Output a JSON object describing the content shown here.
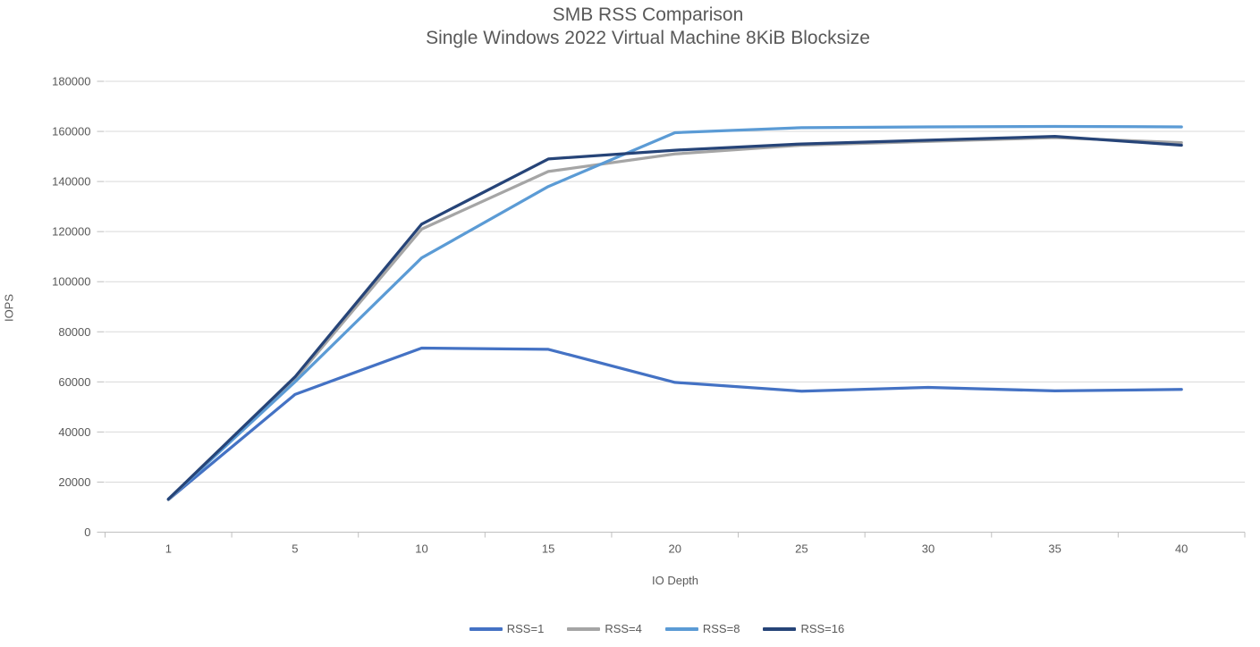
{
  "title": {
    "line1": "SMB RSS Comparison",
    "line2": "Single Windows 2022 Virtual Machine 8KiB Blocksize"
  },
  "chart_data": {
    "type": "line",
    "title": "SMB RSS Comparison",
    "subtitle": "Single Windows 2022 Virtual Machine 8KiB Blocksize",
    "xlabel": "IO Depth",
    "ylabel": "IOPS",
    "categories": [
      1,
      5,
      10,
      15,
      20,
      25,
      30,
      35,
      40
    ],
    "ylim": [
      0,
      180000
    ],
    "ytick_step": 20000,
    "grid": true,
    "legend_position": "bottom",
    "series": [
      {
        "name": "RSS=1",
        "color": "#4472C4",
        "values": [
          13000,
          55000,
          73500,
          73000,
          59800,
          56300,
          57800,
          56400,
          57000
        ]
      },
      {
        "name": "RSS=4",
        "color": "#A5A5A5",
        "values": [
          13000,
          61000,
          121000,
          144000,
          151000,
          154500,
          156000,
          157500,
          155500
        ]
      },
      {
        "name": "RSS=8",
        "color": "#5B9BD5",
        "values": [
          13200,
          60000,
          109500,
          138000,
          159500,
          161500,
          161800,
          162000,
          161800
        ]
      },
      {
        "name": "RSS=16",
        "color": "#264478",
        "values": [
          13200,
          62000,
          123000,
          149000,
          152500,
          155000,
          156500,
          158000,
          154500
        ]
      }
    ]
  },
  "colors": {
    "text": "#595959",
    "gridline": "#D9D9D9",
    "axis": "#BFBFBF",
    "background": "#FFFFFF"
  }
}
